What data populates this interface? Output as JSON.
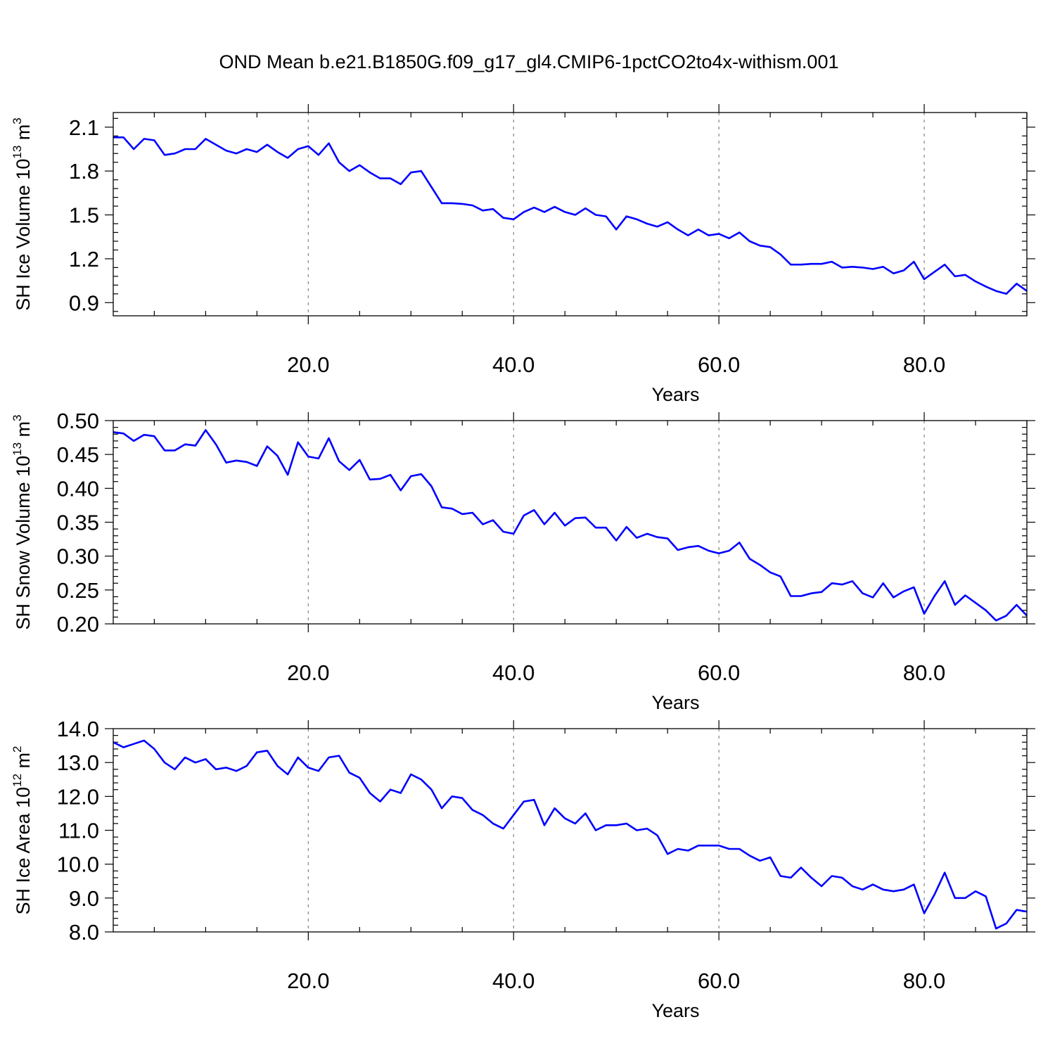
{
  "chart_data": {
    "type": "line",
    "title": "OND Mean b.e21.B1850G.f09_g17_gl4.CMIP6-1pctCO2to4x-withism.001",
    "colors": {
      "series": "#0000ff",
      "grid": "#777777",
      "axes": "#000000"
    },
    "grid": "vertical dashed at major x ticks",
    "panels": [
      {
        "id": "ice-volume",
        "ylabel_text": "SH Ice Volume 10",
        "ylabel_exponent": "13",
        "ylabel_unit": "m",
        "ylabel_unit_exponent": "3",
        "xlabel": "Years",
        "xlim": [
          1,
          90
        ],
        "ylim": [
          0.81,
          2.2
        ],
        "x_ticks": [
          "20.0",
          "40.0",
          "60.0",
          "80.0"
        ],
        "x_tick_values": [
          20,
          40,
          60,
          80
        ],
        "y_ticks": [
          "0.9",
          "1.2",
          "1.5",
          "1.8",
          "2.1"
        ],
        "y_tick_values": [
          0.9,
          1.2,
          1.5,
          1.8,
          2.1
        ],
        "y_minor_step": 0.06,
        "values": [
          2.03,
          2.03,
          1.95,
          2.02,
          2.01,
          1.91,
          1.92,
          1.95,
          1.95,
          2.02,
          1.98,
          1.94,
          1.92,
          1.95,
          1.93,
          1.98,
          1.93,
          1.89,
          1.95,
          1.97,
          1.91,
          1.99,
          1.86,
          1.8,
          1.84,
          1.79,
          1.75,
          1.75,
          1.71,
          1.79,
          1.8,
          1.69,
          1.58,
          1.58,
          1.575,
          1.565,
          1.53,
          1.54,
          1.48,
          1.47,
          1.52,
          1.55,
          1.52,
          1.555,
          1.52,
          1.5,
          1.545,
          1.5,
          1.49,
          1.4,
          1.49,
          1.47,
          1.44,
          1.42,
          1.45,
          1.4,
          1.36,
          1.4,
          1.36,
          1.37,
          1.34,
          1.38,
          1.32,
          1.29,
          1.28,
          1.23,
          1.16,
          1.16,
          1.165,
          1.165,
          1.18,
          1.14,
          1.145,
          1.14,
          1.13,
          1.145,
          1.1,
          1.12,
          1.18,
          1.06,
          1.11,
          1.16,
          1.08,
          1.09,
          1.045,
          1.01,
          0.98,
          0.96,
          1.03,
          0.98
        ]
      },
      {
        "id": "snow-volume",
        "ylabel_text": "SH Snow Volume 10",
        "ylabel_exponent": "13",
        "ylabel_unit": "m",
        "ylabel_unit_exponent": "3",
        "xlabel": "Years",
        "xlim": [
          1,
          90
        ],
        "ylim": [
          0.2,
          0.5
        ],
        "x_ticks": [
          "20.0",
          "40.0",
          "60.0",
          "80.0"
        ],
        "x_tick_values": [
          20,
          40,
          60,
          80
        ],
        "y_ticks": [
          "0.20",
          "0.25",
          "0.30",
          "0.35",
          "0.40",
          "0.45",
          "0.50"
        ],
        "y_tick_values": [
          0.2,
          0.25,
          0.3,
          0.35,
          0.4,
          0.45,
          0.5
        ],
        "y_minor_step": 0.01,
        "values": [
          0.483,
          0.481,
          0.47,
          0.479,
          0.477,
          0.456,
          0.456,
          0.465,
          0.463,
          0.486,
          0.465,
          0.438,
          0.441,
          0.439,
          0.433,
          0.462,
          0.448,
          0.42,
          0.468,
          0.447,
          0.444,
          0.474,
          0.44,
          0.427,
          0.442,
          0.413,
          0.414,
          0.42,
          0.397,
          0.418,
          0.421,
          0.403,
          0.372,
          0.37,
          0.362,
          0.364,
          0.347,
          0.353,
          0.336,
          0.333,
          0.36,
          0.368,
          0.347,
          0.364,
          0.345,
          0.356,
          0.357,
          0.342,
          0.342,
          0.323,
          0.343,
          0.327,
          0.333,
          0.328,
          0.326,
          0.309,
          0.313,
          0.315,
          0.308,
          0.304,
          0.308,
          0.32,
          0.296,
          0.287,
          0.276,
          0.27,
          0.241,
          0.241,
          0.245,
          0.247,
          0.26,
          0.258,
          0.263,
          0.245,
          0.239,
          0.26,
          0.239,
          0.248,
          0.254,
          0.215,
          0.241,
          0.263,
          0.228,
          0.242,
          0.231,
          0.22,
          0.205,
          0.212,
          0.228,
          0.212
        ]
      },
      {
        "id": "ice-area",
        "ylabel_text": "SH Ice Area 10",
        "ylabel_exponent": "12",
        "ylabel_unit": "m",
        "ylabel_unit_exponent": "2",
        "xlabel": "Years",
        "xlim": [
          1,
          90
        ],
        "ylim": [
          8.0,
          14.0
        ],
        "x_ticks": [
          "20.0",
          "40.0",
          "60.0",
          "80.0"
        ],
        "x_tick_values": [
          20,
          40,
          60,
          80
        ],
        "y_ticks": [
          "8.0",
          "9.0",
          "10.0",
          "11.0",
          "12.0",
          "13.0",
          "14.0"
        ],
        "y_tick_values": [
          8,
          9,
          10,
          11,
          12,
          13,
          14
        ],
        "y_minor_step": 0.2,
        "values": [
          13.6,
          13.45,
          13.55,
          13.65,
          13.4,
          13.0,
          12.8,
          13.15,
          13.0,
          13.1,
          12.8,
          12.85,
          12.75,
          12.9,
          13.3,
          13.35,
          12.9,
          12.65,
          13.15,
          12.85,
          12.75,
          13.15,
          13.2,
          12.7,
          12.55,
          12.1,
          11.85,
          12.2,
          12.1,
          12.65,
          12.5,
          12.2,
          11.65,
          12.0,
          11.95,
          11.6,
          11.45,
          11.2,
          11.05,
          11.45,
          11.85,
          11.9,
          11.15,
          11.65,
          11.35,
          11.2,
          11.5,
          11.0,
          11.15,
          11.15,
          11.2,
          11.0,
          11.05,
          10.85,
          10.3,
          10.45,
          10.4,
          10.55,
          10.55,
          10.55,
          10.45,
          10.45,
          10.25,
          10.1,
          10.2,
          9.65,
          9.6,
          9.9,
          9.6,
          9.35,
          9.65,
          9.6,
          9.35,
          9.25,
          9.4,
          9.25,
          9.2,
          9.25,
          9.4,
          8.55,
          9.1,
          9.75,
          9.0,
          9.0,
          9.2,
          9.05,
          8.1,
          8.25,
          8.65,
          8.6
        ]
      }
    ]
  }
}
